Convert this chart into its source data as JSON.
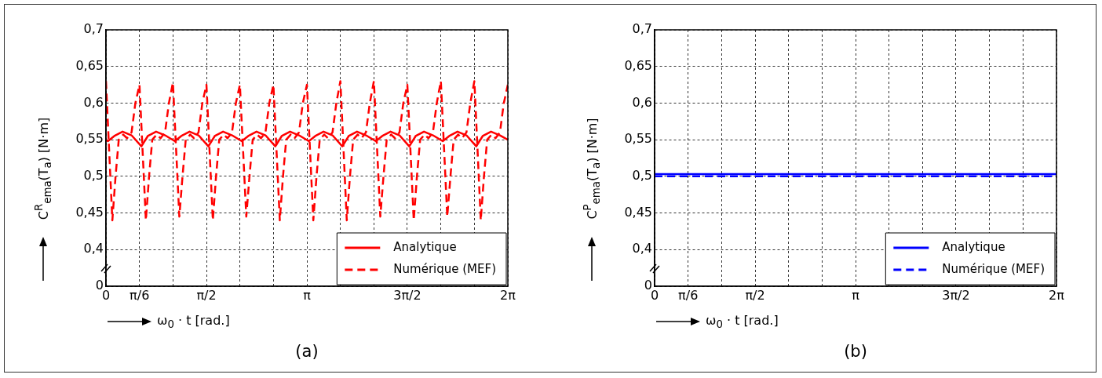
{
  "chart_data": [
    {
      "type": "line",
      "title": "(a)",
      "xlabel": "ω$_{0}$ · t [rad.]",
      "ylabel": "C$^{R}$$_{ema}$(T$_{a}$) [N·m]",
      "xlim": [
        0,
        6.283
      ],
      "ylim": [
        0.35,
        0.7
      ],
      "xticks": [
        {
          "value": 0,
          "label": "0"
        },
        {
          "value": 0.524,
          "label": "π/6"
        },
        {
          "value": 1.047,
          "label": null
        },
        {
          "value": 1.571,
          "label": "π/2"
        },
        {
          "value": 2.094,
          "label": null
        },
        {
          "value": 2.618,
          "label": null
        },
        {
          "value": 3.142,
          "label": "π"
        },
        {
          "value": 3.665,
          "label": null
        },
        {
          "value": 4.189,
          "label": null
        },
        {
          "value": 4.712,
          "label": "3π/2"
        },
        {
          "value": 5.236,
          "label": null
        },
        {
          "value": 5.76,
          "label": null
        },
        {
          "value": 6.283,
          "label": "2π"
        }
      ],
      "yticks": [
        {
          "value": 0.35,
          "label": "0"
        },
        {
          "value": 0.4,
          "label": "0,4"
        },
        {
          "value": 0.45,
          "label": "0,45"
        },
        {
          "value": 0.5,
          "label": "0,5"
        },
        {
          "value": 0.55,
          "label": "0,55"
        },
        {
          "value": 0.6,
          "label": "0,6"
        },
        {
          "value": 0.65,
          "label": "0,65"
        },
        {
          "value": 0.7,
          "label": "0,7"
        }
      ],
      "grid": true,
      "legend": "bottom right",
      "series": [
        {
          "name": "Analytique",
          "color": "#ff0000",
          "line_style": "solid",
          "x": [
            0,
            0.03,
            0.13,
            0.26,
            0.4,
            0.554,
            0.654,
            0.784,
            0.924,
            1.077,
            1.177,
            1.307,
            1.447,
            1.601,
            1.701,
            1.831,
            1.971,
            2.124,
            2.224,
            2.354,
            2.494,
            2.648,
            2.748,
            2.878,
            3.018,
            3.172,
            3.272,
            3.402,
            3.542,
            3.695,
            3.795,
            3.925,
            4.065,
            4.219,
            4.319,
            4.449,
            4.589,
            4.742,
            4.842,
            4.972,
            5.112,
            5.266,
            5.366,
            5.496,
            5.636,
            5.79,
            5.89,
            6.02,
            6.16,
            6.283
          ],
          "values": [
            0.55,
            0.548,
            0.555,
            0.561,
            0.556,
            0.541,
            0.555,
            0.561,
            0.556,
            0.548,
            0.555,
            0.561,
            0.556,
            0.541,
            0.555,
            0.561,
            0.556,
            0.548,
            0.555,
            0.561,
            0.556,
            0.541,
            0.555,
            0.561,
            0.556,
            0.548,
            0.555,
            0.561,
            0.556,
            0.541,
            0.555,
            0.561,
            0.556,
            0.548,
            0.555,
            0.561,
            0.556,
            0.541,
            0.555,
            0.561,
            0.556,
            0.548,
            0.555,
            0.561,
            0.556,
            0.541,
            0.555,
            0.561,
            0.556,
            0.55
          ]
        },
        {
          "name": "Numérique (MEF)",
          "color": "#ff0000",
          "line_style": "dashed",
          "x": [
            0,
            0.1,
            0.15,
            0.2,
            0.27,
            0.33,
            0.4,
            0.46,
            0.524,
            0.624,
            0.674,
            0.724,
            0.794,
            0.854,
            0.924,
            0.984,
            1.047,
            1.147,
            1.197,
            1.247,
            1.317,
            1.377,
            1.447,
            1.507,
            1.571,
            1.671,
            1.721,
            1.771,
            1.841,
            1.901,
            1.971,
            2.031,
            2.094,
            2.194,
            2.244,
            2.294,
            2.364,
            2.424,
            2.494,
            2.554,
            2.618,
            2.718,
            2.768,
            2.818,
            2.888,
            2.948,
            3.018,
            3.078,
            3.142,
            3.242,
            3.292,
            3.342,
            3.412,
            3.472,
            3.542,
            3.602,
            3.665,
            3.765,
            3.815,
            3.865,
            3.935,
            3.995,
            4.065,
            4.125,
            4.189,
            4.289,
            4.339,
            4.389,
            4.459,
            4.519,
            4.589,
            4.649,
            4.712,
            4.812,
            4.862,
            4.912,
            4.982,
            5.042,
            5.112,
            5.172,
            5.236,
            5.336,
            5.386,
            5.436,
            5.506,
            5.566,
            5.636,
            5.696,
            5.76,
            5.86,
            5.91,
            5.96,
            6.03,
            6.09,
            6.16,
            6.22,
            6.283
          ],
          "values": [
            0.63,
            0.44,
            0.5,
            0.55,
            0.557,
            0.552,
            0.56,
            0.6,
            0.625,
            0.44,
            0.5,
            0.55,
            0.557,
            0.552,
            0.56,
            0.6,
            0.628,
            0.445,
            0.5,
            0.55,
            0.557,
            0.552,
            0.56,
            0.6,
            0.625,
            0.44,
            0.5,
            0.55,
            0.557,
            0.552,
            0.56,
            0.6,
            0.625,
            0.445,
            0.5,
            0.55,
            0.557,
            0.552,
            0.56,
            0.6,
            0.625,
            0.44,
            0.5,
            0.55,
            0.557,
            0.552,
            0.56,
            0.6,
            0.625,
            0.44,
            0.5,
            0.55,
            0.557,
            0.552,
            0.56,
            0.6,
            0.63,
            0.44,
            0.5,
            0.55,
            0.557,
            0.552,
            0.56,
            0.6,
            0.63,
            0.445,
            0.5,
            0.55,
            0.557,
            0.552,
            0.56,
            0.6,
            0.625,
            0.44,
            0.5,
            0.55,
            0.557,
            0.552,
            0.56,
            0.6,
            0.63,
            0.445,
            0.5,
            0.55,
            0.557,
            0.552,
            0.56,
            0.6,
            0.63,
            0.44,
            0.5,
            0.55,
            0.557,
            0.552,
            0.56,
            0.6,
            0.625
          ]
        }
      ]
    },
    {
      "type": "line",
      "title": "(b)",
      "xlabel": "ω$_{0}$ · t [rad.]",
      "ylabel": "C$^{P}$$_{ema}$(T$_{a}$) [N·m]",
      "xlim": [
        0,
        6.283
      ],
      "ylim": [
        0.35,
        0.7
      ],
      "xticks": [
        {
          "value": 0,
          "label": "0"
        },
        {
          "value": 0.524,
          "label": "π/6"
        },
        {
          "value": 1.047,
          "label": null
        },
        {
          "value": 1.571,
          "label": "π/2"
        },
        {
          "value": 2.094,
          "label": null
        },
        {
          "value": 2.618,
          "label": null
        },
        {
          "value": 3.142,
          "label": "π"
        },
        {
          "value": 3.665,
          "label": null
        },
        {
          "value": 4.189,
          "label": null
        },
        {
          "value": 4.712,
          "label": "3π/2"
        },
        {
          "value": 5.236,
          "label": null
        },
        {
          "value": 5.76,
          "label": null
        },
        {
          "value": 6.283,
          "label": "2π"
        }
      ],
      "yticks": [
        {
          "value": 0.35,
          "label": "0"
        },
        {
          "value": 0.4,
          "label": "0,4"
        },
        {
          "value": 0.45,
          "label": "0,45"
        },
        {
          "value": 0.5,
          "label": "0,5"
        },
        {
          "value": 0.55,
          "label": "0,55"
        },
        {
          "value": 0.6,
          "label": "0,6"
        },
        {
          "value": 0.65,
          "label": "0,65"
        },
        {
          "value": 0.7,
          "label": "0,7"
        }
      ],
      "grid": true,
      "legend": "bottom right",
      "series": [
        {
          "name": "Analytique",
          "color": "#0000ff",
          "line_style": "solid",
          "x": [
            0,
            6.283
          ],
          "values": [
            0.503,
            0.503
          ]
        },
        {
          "name": "Numérique (MEF)",
          "color": "#0000ff",
          "line_style": "dashed",
          "x": [
            0,
            6.283
          ],
          "values": [
            0.5,
            0.5
          ]
        }
      ]
    }
  ]
}
